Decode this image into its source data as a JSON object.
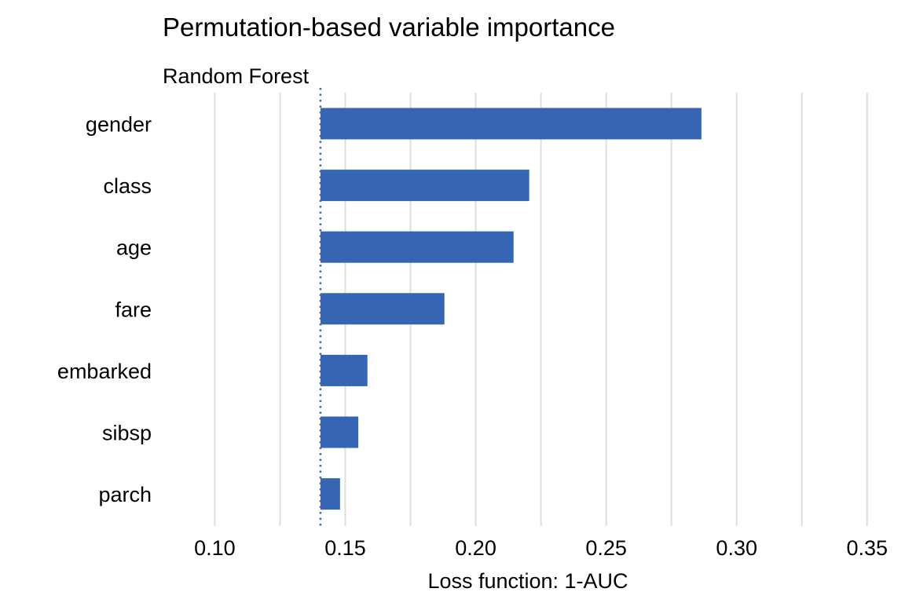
{
  "chart_data": {
    "type": "bar",
    "orientation": "horizontal",
    "title": "Permutation-based variable importance",
    "subtitle": "Random Forest",
    "xlabel": "Loss function: 1-AUC",
    "ylabel": "",
    "categories": [
      "gender",
      "class",
      "age",
      "fare",
      "embarked",
      "sibsp",
      "parch"
    ],
    "values": [
      0.2865,
      0.2205,
      0.2145,
      0.188,
      0.1585,
      0.155,
      0.148
    ],
    "baseline": 0.1405,
    "xlim": [
      0.08,
      0.36
    ],
    "xticks": [
      0.1,
      0.15,
      0.2,
      0.25,
      0.3,
      0.35
    ],
    "xtick_labels": [
      "0.10",
      "0.15",
      "0.20",
      "0.25",
      "0.30",
      "0.35"
    ],
    "minor_gridlines": [
      0.125,
      0.175,
      0.225,
      0.275,
      0.325
    ],
    "grid": "vertical",
    "legend": "none",
    "colors": {
      "bar": "#3565b3",
      "baseline": "#3d6cb8",
      "grid": "#dedede"
    }
  }
}
